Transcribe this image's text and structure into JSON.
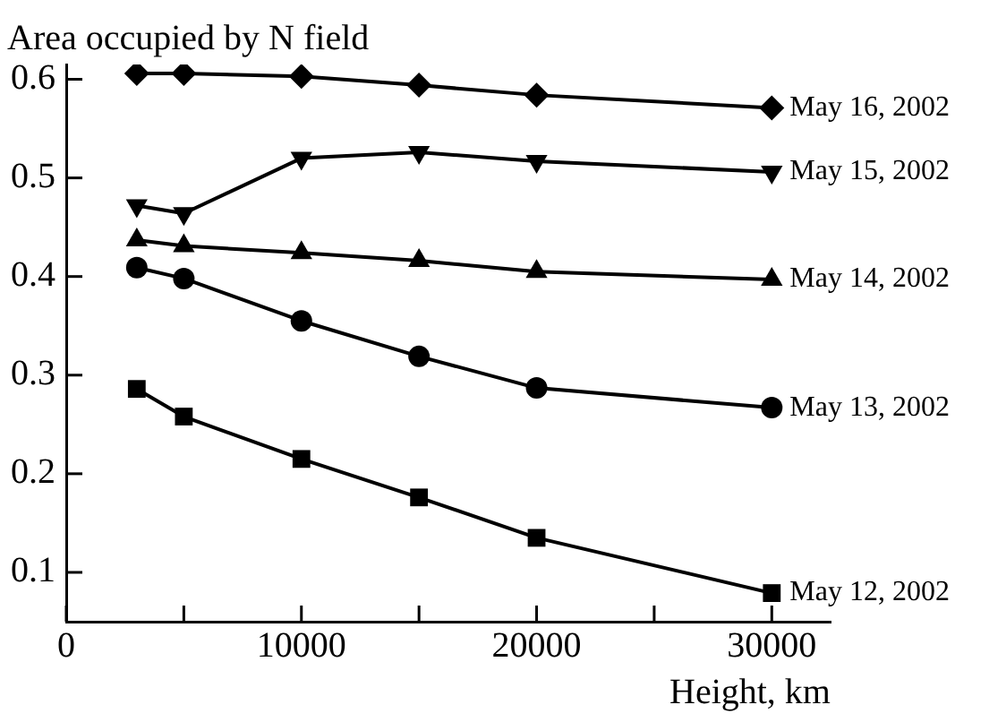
{
  "chart_data": {
    "type": "line",
    "ylabel": "Area occupied by N field",
    "xlabel": "Height, km",
    "x": [
      3000,
      5000,
      10000,
      15000,
      20000,
      30000
    ],
    "series": [
      {
        "name": "May 16, 2002",
        "color": "#000000",
        "marker": "diamond",
        "values": [
          0.606,
          0.606,
          0.603,
          0.594,
          0.584,
          0.571
        ]
      },
      {
        "name": "May 15, 2002",
        "color": "#000000",
        "marker": "triangle-down",
        "values": [
          0.472,
          0.464,
          0.52,
          0.526,
          0.517,
          0.506
        ]
      },
      {
        "name": "May 14, 2002",
        "color": "#000000",
        "marker": "triangle",
        "values": [
          0.437,
          0.431,
          0.424,
          0.416,
          0.405,
          0.397
        ]
      },
      {
        "name": "May 13, 2002",
        "color": "#000000",
        "marker": "circle",
        "values": [
          0.409,
          0.398,
          0.355,
          0.319,
          0.287,
          0.267
        ]
      },
      {
        "name": "May 12, 2002",
        "color": "#000000",
        "marker": "square",
        "values": [
          0.286,
          0.258,
          0.215,
          0.176,
          0.135,
          0.079
        ]
      }
    ],
    "xlim": [
      0,
      32500
    ],
    "xticks": [
      0,
      {
        "value": 5000,
        "label": null
      },
      10000,
      {
        "value": 15000,
        "label": null
      },
      20000,
      {
        "value": 25000,
        "label": null
      },
      30000
    ],
    "ylim": [
      0.05,
      0.615
    ],
    "yticks": [
      0.1,
      0.2,
      0.3,
      0.4,
      0.5,
      0.6
    ],
    "grid": false,
    "legend": false,
    "line_style": "solid"
  }
}
